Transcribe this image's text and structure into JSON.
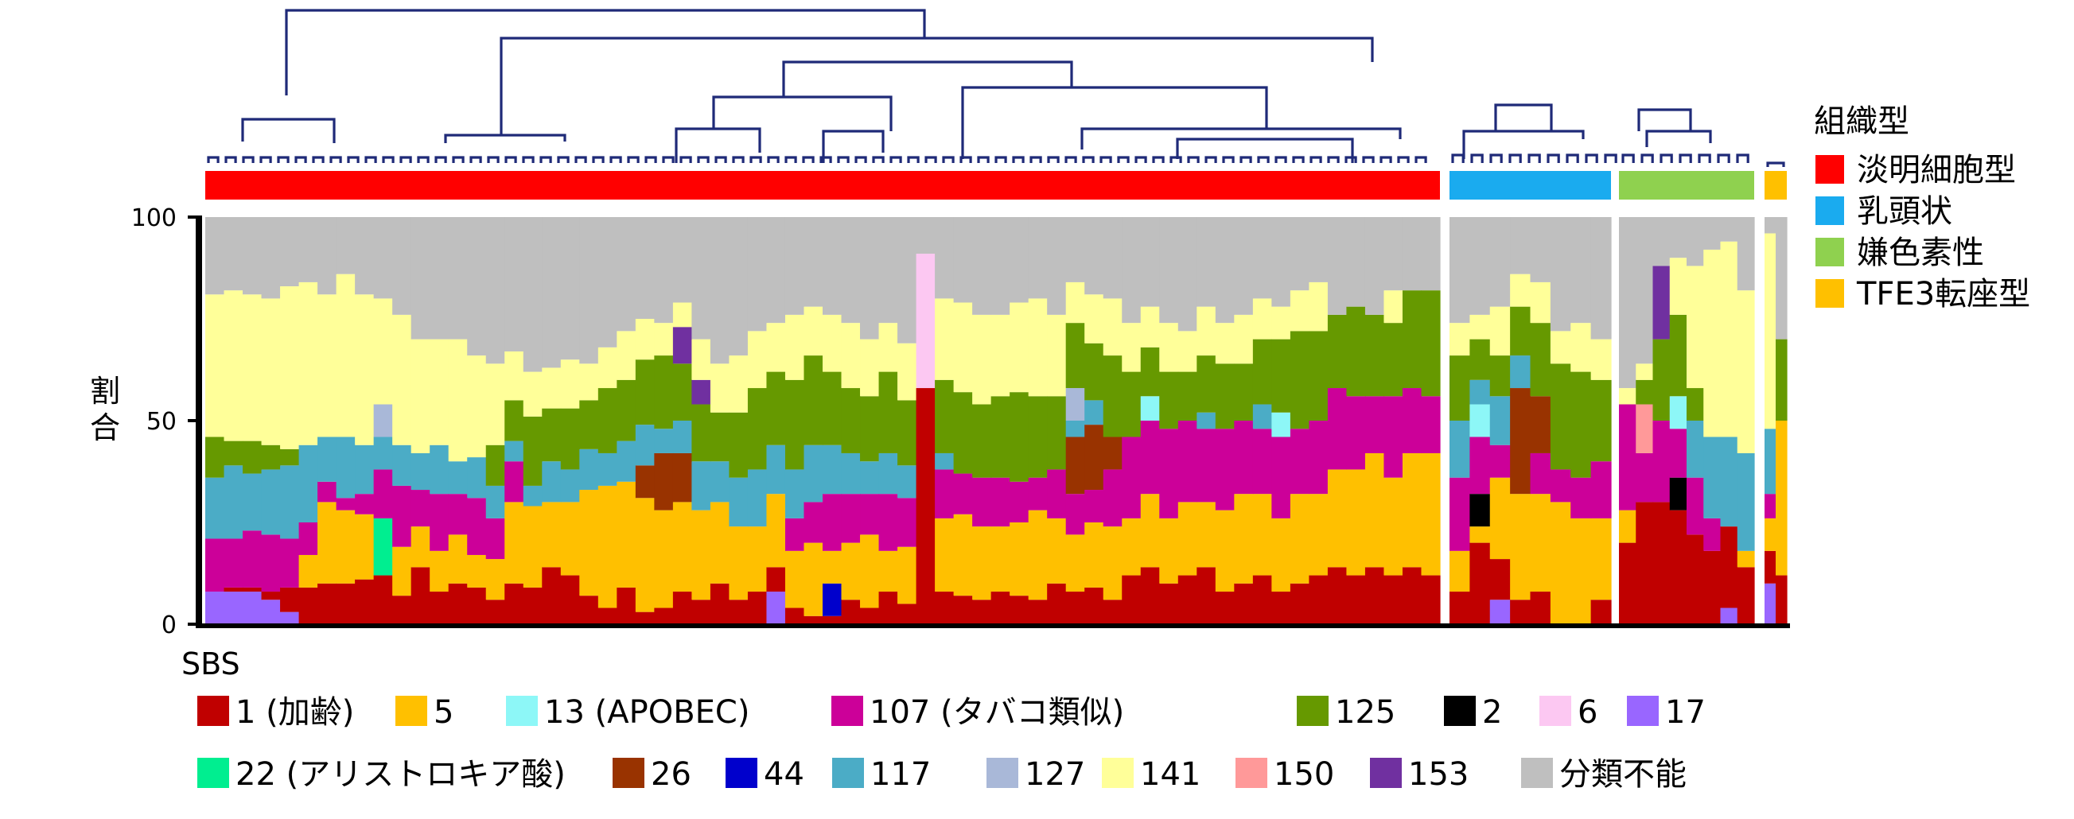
{
  "chart_data": {
    "type": "bar",
    "stacked": true,
    "ylabel": "割合",
    "ylim": [
      0,
      100
    ],
    "yticks": [
      0,
      50,
      100
    ],
    "grid": false,
    "legend_title_sbs": "SBS",
    "legend_title_histology": "組織型",
    "histology_legend": [
      {
        "key": "ccRCC",
        "label": "淡明細胞型",
        "color": "#ff0000"
      },
      {
        "key": "pRCC",
        "label": "乳頭状",
        "color": "#1aabef"
      },
      {
        "key": "chRCC",
        "label": "嫌色素性",
        "color": "#8fd14f"
      },
      {
        "key": "TFE3",
        "label": "TFE3転座型",
        "color": "#ffc000"
      }
    ],
    "sbs_legend": [
      {
        "key": "SBS1",
        "label": "1 (加齢)",
        "color": "#c00000"
      },
      {
        "key": "SBS5",
        "label": "5",
        "color": "#ffc000"
      },
      {
        "key": "SBS13",
        "label": "13 (APOBEC)",
        "color": "#8df7f7"
      },
      {
        "key": "SBS107",
        "label": "107 (タバコ類似)",
        "color": "#cc0099"
      },
      {
        "key": "SBS125",
        "label": "125",
        "color": "#669900"
      },
      {
        "key": "SBS2",
        "label": "2",
        "color": "#000000"
      },
      {
        "key": "SBS6",
        "label": "6",
        "color": "#fcc8f2"
      },
      {
        "key": "SBS17",
        "label": "17",
        "color": "#9966ff"
      },
      {
        "key": "SBS22",
        "label": "22 (アリストロキア酸)",
        "color": "#00ee90"
      },
      {
        "key": "SBS26",
        "label": "26",
        "color": "#993300"
      },
      {
        "key": "SBS44",
        "label": "44",
        "color": "#0000cc"
      },
      {
        "key": "SBS117",
        "label": "117",
        "color": "#4bacc6"
      },
      {
        "key": "SBS127",
        "label": "127",
        "color": "#a9b8d8"
      },
      {
        "key": "SBS141",
        "label": "141",
        "color": "#ffff99"
      },
      {
        "key": "SBS150",
        "label": "150",
        "color": "#ff9999"
      },
      {
        "key": "SBS153",
        "label": "153",
        "color": "#7030a0"
      },
      {
        "key": "unclassified",
        "label": "分類不能",
        "color": "#bfbfbf"
      }
    ],
    "stack_order": [
      "SBS17",
      "SBS1",
      "SBS44",
      "SBS22",
      "SBS5",
      "SBS2",
      "SBS107",
      "SBS26",
      "SBS13",
      "SBS6",
      "SBS150",
      "SBS117",
      "SBS127",
      "SBS125",
      "SBS153",
      "SBS141",
      "unclassified"
    ],
    "note": "values are approximate proportions (%) read from the figure",
    "groups": [
      {
        "histology": "ccRCC",
        "samples": [
          {
            "SBS17": 8,
            "SBS1": 0,
            "SBS5": 0,
            "SBS107": 13,
            "SBS117": 15,
            "SBS125": 10,
            "SBS141": 35
          },
          {
            "SBS17": 8,
            "SBS1": 1,
            "SBS5": 0,
            "SBS107": 12,
            "SBS117": 18,
            "SBS125": 6,
            "SBS141": 37
          },
          {
            "SBS17": 8,
            "SBS1": 1,
            "SBS5": 0,
            "SBS107": 14,
            "SBS117": 14,
            "SBS125": 8,
            "SBS141": 36
          },
          {
            "SBS17": 6,
            "SBS1": 2,
            "SBS5": 0,
            "SBS107": 14,
            "SBS117": 16,
            "SBS125": 6,
            "SBS141": 36
          },
          {
            "SBS17": 3,
            "SBS1": 6,
            "SBS5": 0,
            "SBS107": 12,
            "SBS117": 18,
            "SBS125": 4,
            "SBS141": 40
          },
          {
            "SBS17": 0,
            "SBS1": 9,
            "SBS5": 8,
            "SBS107": 8,
            "SBS117": 19,
            "SBS125": 0,
            "SBS141": 40
          },
          {
            "SBS1": 10,
            "SBS5": 20,
            "SBS107": 5,
            "SBS117": 11,
            "SBS141": 35
          },
          {
            "SBS1": 10,
            "SBS5": 18,
            "SBS107": 3,
            "SBS117": 15,
            "SBS141": 40
          },
          {
            "SBS1": 11,
            "SBS5": 16,
            "SBS107": 5,
            "SBS117": 12,
            "SBS141": 37
          },
          {
            "SBS1": 12,
            "SBS5": 0,
            "SBS22": 14,
            "SBS107": 12,
            "SBS117": 8,
            "SBS127": 8,
            "SBS141": 26
          },
          {
            "SBS1": 7,
            "SBS5": 12,
            "SBS107": 15,
            "SBS117": 10,
            "SBS141": 32
          },
          {
            "SBS1": 14,
            "SBS5": 10,
            "SBS107": 9,
            "SBS117": 9,
            "SBS141": 28
          },
          {
            "SBS1": 8,
            "SBS5": 10,
            "SBS107": 14,
            "SBS117": 12,
            "SBS141": 26
          },
          {
            "SBS1": 10,
            "SBS5": 12,
            "SBS107": 10,
            "SBS117": 8,
            "SBS141": 30
          },
          {
            "SBS1": 9,
            "SBS5": 8,
            "SBS107": 14,
            "SBS117": 10,
            "SBS141": 25
          },
          {
            "SBS1": 6,
            "SBS5": 10,
            "SBS107": 10,
            "SBS117": 8,
            "SBS125": 10,
            "SBS141": 20
          },
          {
            "SBS1": 10,
            "SBS5": 20,
            "SBS107": 10,
            "SBS117": 5,
            "SBS125": 10,
            "SBS141": 12
          },
          {
            "SBS1": 9,
            "SBS5": 20,
            "SBS117": 5,
            "SBS125": 17,
            "SBS141": 11
          },
          {
            "SBS1": 14,
            "SBS5": 16,
            "SBS117": 10,
            "SBS125": 13,
            "SBS141": 10
          },
          {
            "SBS1": 12,
            "SBS5": 18,
            "SBS117": 8,
            "SBS125": 15,
            "SBS141": 12
          },
          {
            "SBS1": 7,
            "SBS5": 26,
            "SBS117": 10,
            "SBS125": 12,
            "SBS141": 9
          },
          {
            "SBS1": 4,
            "SBS5": 30,
            "SBS117": 8,
            "SBS125": 16,
            "SBS141": 10
          },
          {
            "SBS1": 9,
            "SBS5": 26,
            "SBS117": 10,
            "SBS125": 15,
            "SBS141": 12
          },
          {
            "SBS1": 3,
            "SBS5": 28,
            "SBS26": 8,
            "SBS117": 10,
            "SBS125": 16,
            "SBS141": 10
          },
          {
            "SBS1": 4,
            "SBS5": 24,
            "SBS26": 14,
            "SBS117": 6,
            "SBS125": 18,
            "SBS141": 8
          },
          {
            "SBS1": 8,
            "SBS5": 22,
            "SBS26": 12,
            "SBS117": 8,
            "SBS125": 14,
            "SBS153": 9,
            "SBS141": 6
          },
          {
            "SBS1": 6,
            "SBS5": 22,
            "SBS117": 12,
            "SBS125": 14,
            "SBS153": 6,
            "SBS141": 10
          },
          {
            "SBS1": 10,
            "SBS5": 20,
            "SBS117": 10,
            "SBS125": 12,
            "SBS141": 12
          },
          {
            "SBS1": 6,
            "SBS5": 18,
            "SBS117": 12,
            "SBS125": 16,
            "SBS141": 14
          },
          {
            "SBS1": 8,
            "SBS5": 16,
            "SBS117": 14,
            "SBS125": 20,
            "SBS141": 14
          },
          {
            "SBS1": 6,
            "SBS5": 18,
            "SBS17": 8,
            "SBS117": 12,
            "SBS125": 18,
            "SBS141": 12
          },
          {
            "SBS1": 4,
            "SBS5": 14,
            "SBS107": 8,
            "SBS117": 12,
            "SBS125": 22,
            "SBS141": 16
          },
          {
            "SBS1": 2,
            "SBS5": 18,
            "SBS107": 10,
            "SBS117": 14,
            "SBS125": 22,
            "SBS141": 12
          },
          {
            "SBS1": 2,
            "SBS44": 8,
            "SBS5": 8,
            "SBS107": 14,
            "SBS117": 12,
            "SBS125": 18,
            "SBS141": 14
          },
          {
            "SBS1": 6,
            "SBS5": 14,
            "SBS107": 12,
            "SBS117": 10,
            "SBS125": 16,
            "SBS141": 16
          },
          {
            "SBS1": 4,
            "SBS5": 18,
            "SBS107": 10,
            "SBS117": 8,
            "SBS125": 16,
            "SBS141": 14
          },
          {
            "SBS1": 8,
            "SBS5": 10,
            "SBS107": 14,
            "SBS117": 10,
            "SBS125": 20,
            "SBS141": 12
          },
          {
            "SBS1": 5,
            "SBS5": 14,
            "SBS107": 12,
            "SBS117": 8,
            "SBS125": 16,
            "SBS141": 14
          },
          {
            "SBS1": 58,
            "SBS6": 33,
            "SBS141": 0
          },
          {
            "SBS1": 8,
            "SBS5": 18,
            "SBS107": 12,
            "SBS117": 4,
            "SBS125": 18,
            "SBS141": 20
          },
          {
            "SBS1": 7,
            "SBS5": 20,
            "SBS107": 10,
            "SBS125": 20,
            "SBS141": 22
          },
          {
            "SBS1": 6,
            "SBS5": 18,
            "SBS107": 12,
            "SBS125": 18,
            "SBS141": 22
          },
          {
            "SBS1": 8,
            "SBS5": 16,
            "SBS107": 12,
            "SBS125": 20,
            "SBS141": 20
          },
          {
            "SBS1": 7,
            "SBS5": 18,
            "SBS107": 10,
            "SBS125": 22,
            "SBS141": 22
          },
          {
            "SBS1": 6,
            "SBS5": 22,
            "SBS107": 8,
            "SBS125": 20,
            "SBS141": 24
          },
          {
            "SBS1": 10,
            "SBS5": 16,
            "SBS107": 12,
            "SBS125": 18,
            "SBS141": 20
          },
          {
            "SBS1": 8,
            "SBS5": 14,
            "SBS107": 10,
            "SBS26": 14,
            "SBS117": 4,
            "SBS125": 16,
            "SBS127": 8,
            "SBS141": 10
          },
          {
            "SBS1": 9,
            "SBS5": 16,
            "SBS107": 8,
            "SBS26": 16,
            "SBS117": 6,
            "SBS125": 14,
            "SBS141": 12
          },
          {
            "SBS1": 6,
            "SBS5": 18,
            "SBS107": 14,
            "SBS26": 8,
            "SBS125": 20,
            "SBS141": 14
          },
          {
            "SBS1": 12,
            "SBS5": 14,
            "SBS107": 20,
            "SBS125": 16,
            "SBS141": 12
          },
          {
            "SBS1": 14,
            "SBS5": 18,
            "SBS107": 18,
            "SBS13": 6,
            "SBS125": 12,
            "SBS141": 10
          },
          {
            "SBS1": 10,
            "SBS5": 16,
            "SBS107": 22,
            "SBS125": 14,
            "SBS141": 12
          },
          {
            "SBS1": 12,
            "SBS5": 18,
            "SBS107": 20,
            "SBS125": 12,
            "SBS141": 10
          },
          {
            "SBS1": 14,
            "SBS5": 16,
            "SBS107": 18,
            "SBS117": 4,
            "SBS125": 14,
            "SBS141": 12
          },
          {
            "SBS1": 8,
            "SBS5": 20,
            "SBS107": 20,
            "SBS125": 16,
            "SBS141": 10
          },
          {
            "SBS1": 10,
            "SBS5": 22,
            "SBS107": 18,
            "SBS125": 14,
            "SBS141": 12
          },
          {
            "SBS1": 12,
            "SBS5": 20,
            "SBS107": 16,
            "SBS117": 6,
            "SBS125": 16,
            "SBS141": 10
          },
          {
            "SBS1": 8,
            "SBS5": 18,
            "SBS107": 20,
            "SBS13": 6,
            "SBS125": 18,
            "SBS141": 8
          },
          {
            "SBS1": 10,
            "SBS5": 22,
            "SBS107": 16,
            "SBS125": 24,
            "SBS141": 10
          },
          {
            "SBS1": 12,
            "SBS5": 20,
            "SBS107": 18,
            "SBS125": 22,
            "SBS141": 12
          },
          {
            "SBS1": 14,
            "SBS5": 24,
            "SBS107": 20,
            "SBS125": 18,
            "SBS141": 0
          },
          {
            "SBS1": 12,
            "SBS5": 26,
            "SBS107": 18,
            "SBS125": 22,
            "SBS141": 0
          },
          {
            "SBS1": 14,
            "SBS5": 28,
            "SBS107": 14,
            "SBS125": 20,
            "SBS141": 0
          },
          {
            "SBS1": 12,
            "SBS5": 24,
            "SBS107": 20,
            "SBS125": 18,
            "SBS141": 8
          },
          {
            "SBS1": 14,
            "SBS5": 28,
            "SBS107": 16,
            "SBS125": 24,
            "SBS141": 0
          },
          {
            "SBS1": 12,
            "SBS5": 30,
            "SBS107": 14,
            "SBS125": 26,
            "SBS141": 0
          }
        ]
      },
      {
        "histology": "pRCC",
        "samples": [
          {
            "SBS1": 8,
            "SBS5": 10,
            "SBS107": 18,
            "SBS117": 14,
            "SBS125": 16,
            "SBS141": 8
          },
          {
            "SBS1": 20,
            "SBS2": 8,
            "SBS5": 4,
            "SBS107": 14,
            "SBS13": 8,
            "SBS117": 6,
            "SBS125": 10,
            "SBS141": 6
          },
          {
            "SBS17": 6,
            "SBS1": 10,
            "SBS5": 20,
            "SBS107": 8,
            "SBS117": 12,
            "SBS125": 10,
            "SBS141": 12
          },
          {
            "SBS1": 6,
            "SBS5": 26,
            "SBS26": 26,
            "SBS117": 8,
            "SBS125": 12,
            "SBS141": 8
          },
          {
            "SBS1": 8,
            "SBS5": 24,
            "SBS26": 14,
            "SBS107": 10,
            "SBS125": 18,
            "SBS141": 10
          },
          {
            "SBS1": 0,
            "SBS5": 30,
            "SBS107": 8,
            "SBS125": 26,
            "SBS141": 8
          },
          {
            "SBS1": 0,
            "SBS5": 26,
            "SBS107": 10,
            "SBS125": 26,
            "SBS141": 12
          },
          {
            "SBS1": 6,
            "SBS5": 20,
            "SBS107": 14,
            "SBS125": 20,
            "SBS141": 10
          }
        ]
      },
      {
        "histology": "chRCC",
        "samples": [
          {
            "SBS1": 20,
            "SBS5": 8,
            "SBS107": 26,
            "SBS141": 4
          },
          {
            "SBS1": 30,
            "SBS150": 12,
            "SBS107": 12,
            "SBS125": 6,
            "SBS141": 4
          },
          {
            "SBS1": 30,
            "SBS107": 20,
            "SBS125": 20,
            "SBS153": 18,
            "SBS141": 0
          },
          {
            "SBS1": 28,
            "SBS2": 8,
            "SBS107": 12,
            "SBS13": 8,
            "SBS125": 20,
            "SBS141": 14
          },
          {
            "SBS1": 22,
            "SBS107": 14,
            "SBS117": 14,
            "SBS125": 8,
            "SBS141": 30
          },
          {
            "SBS1": 18,
            "SBS107": 8,
            "SBS117": 20,
            "SBS141": 46
          },
          {
            "SBS1": 20,
            "SBS17": 4,
            "SBS117": 22,
            "SBS141": 48
          },
          {
            "SBS1": 14,
            "SBS5": 4,
            "SBS117": 24,
            "SBS141": 40
          }
        ]
      },
      {
        "histology": "TFE3",
        "samples": [
          {
            "SBS17": 10,
            "SBS1": 8,
            "SBS5": 8,
            "SBS107": 6,
            "SBS117": 16,
            "SBS141": 48
          },
          {
            "SBS1": 12,
            "SBS5": 38,
            "SBS125": 20,
            "SBS141": 0
          }
        ]
      }
    ]
  }
}
